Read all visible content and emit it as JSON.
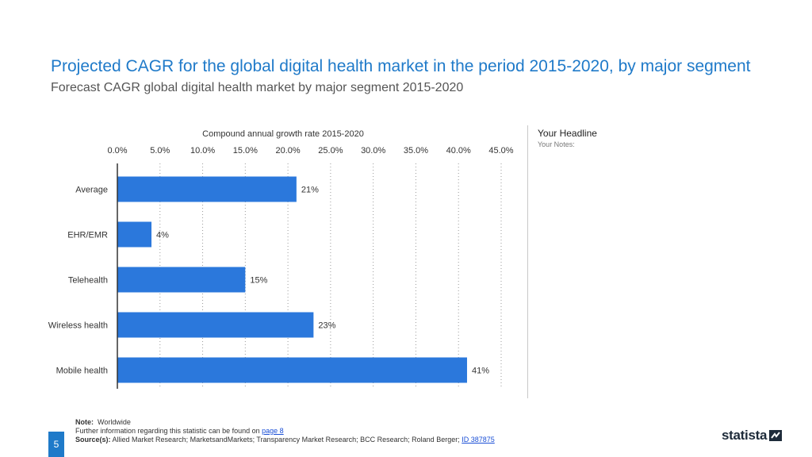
{
  "header": {
    "title": "Projected CAGR for the global digital health market in the period 2015-2020, by major segment",
    "subtitle": "Forecast CAGR global digital health market by major segment 2015-2020"
  },
  "chart_data": {
    "type": "bar",
    "orientation": "horizontal",
    "title": "Compound annual growth rate 2015-2020",
    "categories": [
      "Average",
      "EHR/EMR",
      "Telehealth",
      "Wireless health",
      "Mobile health"
    ],
    "values": [
      21,
      4,
      15,
      23,
      41
    ],
    "value_labels": [
      "21%",
      "4%",
      "15%",
      "23%",
      "41%"
    ],
    "ticks": [
      0,
      5,
      10,
      15,
      20,
      25,
      30,
      35,
      40,
      45
    ],
    "tick_labels": [
      "0.0%",
      "5.0%",
      "10.0%",
      "15.0%",
      "20.0%",
      "25.0%",
      "30.0%",
      "35.0%",
      "40.0%",
      "45.0%"
    ],
    "xlim": [
      0,
      45
    ],
    "grid": true,
    "bar_color": "#2b78dc"
  },
  "side": {
    "headline": "Your Headline",
    "notes": "Your Notes:"
  },
  "footer": {
    "note_label": "Note:",
    "note_text": "Worldwide",
    "info_text": "Further information regarding this statistic can be found on",
    "info_link": "page 8",
    "source_label": "Source(s):",
    "source_text": "Allied Market Research; MarketsandMarkets; Transparency Market Research; BCC Research; Roland Berger;",
    "source_link": "ID 387875",
    "page_number": "5"
  },
  "brand": {
    "logo_text": "statista",
    "accent": "#1f7ac9"
  }
}
